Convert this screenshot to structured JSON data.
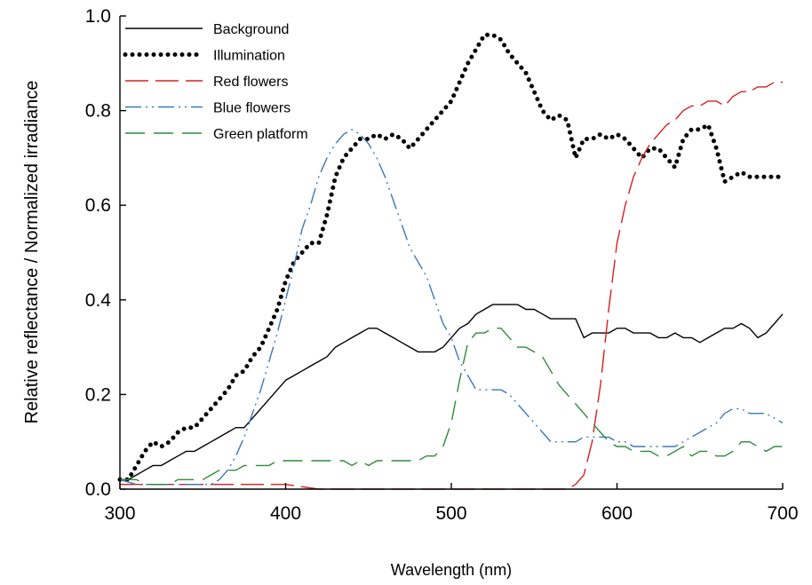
{
  "chart_data": {
    "type": "line",
    "xlabel": "Wavelength (nm)",
    "ylabel": "Relative reflectance / Normalized irradiance",
    "xlim": [
      300,
      700
    ],
    "ylim": [
      0,
      1.0
    ],
    "xticks": [
      "300",
      "400",
      "500",
      "600",
      "700"
    ],
    "yticks": [
      "0.0",
      "0.2",
      "0.4",
      "0.6",
      "0.8",
      "1.0"
    ],
    "grid": false,
    "legend_position": "top-center",
    "series": [
      {
        "name": "Background",
        "color": "#000000",
        "dash": "solid",
        "x": [
          300,
          305,
          310,
          315,
          320,
          325,
          330,
          335,
          340,
          345,
          350,
          355,
          360,
          365,
          370,
          375,
          380,
          385,
          390,
          395,
          400,
          405,
          410,
          415,
          420,
          425,
          430,
          435,
          440,
          445,
          450,
          455,
          460,
          465,
          470,
          475,
          480,
          485,
          490,
          495,
          500,
          505,
          510,
          515,
          520,
          525,
          530,
          535,
          540,
          545,
          550,
          555,
          560,
          565,
          570,
          575,
          580,
          585,
          590,
          595,
          600,
          605,
          610,
          615,
          620,
          625,
          630,
          635,
          640,
          645,
          650,
          655,
          660,
          665,
          670,
          675,
          680,
          685,
          690,
          695,
          700
        ],
        "y": [
          0.02,
          0.02,
          0.03,
          0.04,
          0.05,
          0.05,
          0.06,
          0.07,
          0.08,
          0.08,
          0.09,
          0.1,
          0.11,
          0.12,
          0.13,
          0.13,
          0.15,
          0.17,
          0.19,
          0.21,
          0.23,
          0.24,
          0.25,
          0.26,
          0.27,
          0.28,
          0.3,
          0.31,
          0.32,
          0.33,
          0.34,
          0.34,
          0.33,
          0.32,
          0.31,
          0.3,
          0.29,
          0.29,
          0.29,
          0.3,
          0.32,
          0.34,
          0.35,
          0.37,
          0.38,
          0.39,
          0.39,
          0.39,
          0.39,
          0.38,
          0.38,
          0.37,
          0.36,
          0.36,
          0.36,
          0.36,
          0.32,
          0.33,
          0.33,
          0.33,
          0.34,
          0.34,
          0.33,
          0.33,
          0.33,
          0.32,
          0.32,
          0.33,
          0.32,
          0.32,
          0.31,
          0.32,
          0.33,
          0.34,
          0.34,
          0.35,
          0.34,
          0.32,
          0.33,
          0.35,
          0.37
        ]
      },
      {
        "name": "Illumination",
        "color": "#000000",
        "dash": "dotted",
        "x": [
          300,
          305,
          310,
          315,
          320,
          325,
          330,
          335,
          340,
          345,
          350,
          355,
          360,
          365,
          370,
          375,
          380,
          385,
          390,
          395,
          400,
          405,
          410,
          415,
          420,
          425,
          430,
          435,
          440,
          445,
          450,
          455,
          460,
          465,
          470,
          475,
          480,
          485,
          490,
          495,
          500,
          505,
          510,
          515,
          520,
          525,
          530,
          535,
          540,
          545,
          550,
          555,
          560,
          565,
          570,
          575,
          580,
          585,
          590,
          595,
          600,
          605,
          610,
          615,
          620,
          625,
          630,
          635,
          640,
          645,
          650,
          655,
          660,
          665,
          670,
          675,
          680,
          685,
          690,
          695,
          700
        ],
        "y": [
          0.02,
          0.02,
          0.05,
          0.08,
          0.1,
          0.09,
          0.1,
          0.12,
          0.13,
          0.13,
          0.15,
          0.17,
          0.19,
          0.21,
          0.24,
          0.25,
          0.28,
          0.3,
          0.34,
          0.38,
          0.44,
          0.48,
          0.5,
          0.52,
          0.52,
          0.58,
          0.66,
          0.7,
          0.72,
          0.74,
          0.74,
          0.75,
          0.74,
          0.75,
          0.74,
          0.72,
          0.74,
          0.76,
          0.78,
          0.8,
          0.82,
          0.86,
          0.9,
          0.93,
          0.96,
          0.96,
          0.95,
          0.92,
          0.9,
          0.88,
          0.84,
          0.8,
          0.78,
          0.79,
          0.78,
          0.7,
          0.74,
          0.74,
          0.75,
          0.74,
          0.75,
          0.74,
          0.72,
          0.7,
          0.72,
          0.72,
          0.7,
          0.68,
          0.74,
          0.76,
          0.76,
          0.77,
          0.72,
          0.65,
          0.66,
          0.67,
          0.66,
          0.66,
          0.66,
          0.66,
          0.66
        ]
      },
      {
        "name": "Red flowers",
        "color": "#d62020",
        "dash": "longdash",
        "x": [
          300,
          320,
          340,
          360,
          380,
          400,
          420,
          440,
          460,
          480,
          500,
          520,
          540,
          560,
          570,
          575,
          580,
          585,
          590,
          595,
          600,
          605,
          610,
          615,
          620,
          625,
          630,
          635,
          640,
          645,
          650,
          655,
          660,
          665,
          670,
          675,
          680,
          685,
          690,
          695,
          700
        ],
        "y": [
          0.01,
          0.01,
          0.01,
          0.01,
          0.01,
          0.01,
          0.0,
          0.0,
          0.0,
          0.0,
          0.0,
          0.0,
          0.0,
          0.0,
          0.0,
          0.01,
          0.03,
          0.1,
          0.22,
          0.38,
          0.52,
          0.6,
          0.66,
          0.7,
          0.73,
          0.75,
          0.77,
          0.78,
          0.8,
          0.81,
          0.81,
          0.82,
          0.82,
          0.81,
          0.83,
          0.84,
          0.84,
          0.85,
          0.85,
          0.86,
          0.86
        ]
      },
      {
        "name": "Blue flowers",
        "color": "#3a78c0",
        "dash": "dashdotdot",
        "x": [
          300,
          310,
          320,
          330,
          340,
          350,
          355,
          360,
          365,
          370,
          375,
          380,
          385,
          390,
          395,
          400,
          405,
          410,
          415,
          420,
          425,
          430,
          435,
          440,
          445,
          450,
          455,
          460,
          465,
          470,
          475,
          480,
          485,
          490,
          495,
          500,
          505,
          510,
          515,
          520,
          525,
          530,
          535,
          540,
          545,
          550,
          555,
          560,
          565,
          570,
          575,
          580,
          585,
          590,
          595,
          600,
          605,
          610,
          615,
          620,
          625,
          630,
          635,
          640,
          645,
          650,
          655,
          660,
          665,
          670,
          675,
          680,
          685,
          690,
          695,
          700
        ],
        "y": [
          0.02,
          0.01,
          0.01,
          0.01,
          0.01,
          0.01,
          0.01,
          0.02,
          0.04,
          0.07,
          0.11,
          0.16,
          0.21,
          0.27,
          0.33,
          0.4,
          0.47,
          0.55,
          0.6,
          0.66,
          0.7,
          0.73,
          0.75,
          0.76,
          0.75,
          0.73,
          0.7,
          0.66,
          0.61,
          0.56,
          0.51,
          0.48,
          0.45,
          0.4,
          0.35,
          0.32,
          0.27,
          0.24,
          0.21,
          0.21,
          0.21,
          0.21,
          0.2,
          0.18,
          0.16,
          0.14,
          0.12,
          0.1,
          0.1,
          0.1,
          0.1,
          0.11,
          0.11,
          0.11,
          0.11,
          0.1,
          0.1,
          0.09,
          0.09,
          0.09,
          0.09,
          0.09,
          0.09,
          0.1,
          0.11,
          0.12,
          0.13,
          0.14,
          0.16,
          0.17,
          0.17,
          0.16,
          0.16,
          0.16,
          0.15,
          0.14
        ]
      },
      {
        "name": "Green platform",
        "color": "#2f8a3a",
        "dash": "dash",
        "x": [
          300,
          305,
          310,
          315,
          320,
          325,
          330,
          335,
          340,
          345,
          350,
          355,
          360,
          365,
          370,
          375,
          380,
          385,
          390,
          395,
          400,
          405,
          410,
          415,
          420,
          425,
          430,
          435,
          440,
          445,
          450,
          455,
          460,
          465,
          470,
          475,
          480,
          485,
          490,
          495,
          500,
          505,
          510,
          515,
          520,
          525,
          530,
          535,
          540,
          545,
          550,
          555,
          560,
          565,
          570,
          575,
          580,
          585,
          590,
          595,
          600,
          605,
          610,
          615,
          620,
          625,
          630,
          635,
          640,
          645,
          650,
          655,
          660,
          665,
          670,
          675,
          680,
          685,
          690,
          695,
          700
        ],
        "y": [
          0.02,
          0.02,
          0.02,
          0.01,
          0.01,
          0.01,
          0.01,
          0.02,
          0.02,
          0.02,
          0.02,
          0.03,
          0.04,
          0.04,
          0.04,
          0.05,
          0.05,
          0.05,
          0.05,
          0.06,
          0.06,
          0.06,
          0.06,
          0.06,
          0.06,
          0.06,
          0.06,
          0.06,
          0.05,
          0.06,
          0.05,
          0.06,
          0.06,
          0.06,
          0.06,
          0.06,
          0.06,
          0.07,
          0.07,
          0.09,
          0.14,
          0.23,
          0.31,
          0.33,
          0.33,
          0.34,
          0.34,
          0.32,
          0.3,
          0.3,
          0.29,
          0.28,
          0.25,
          0.22,
          0.2,
          0.18,
          0.16,
          0.14,
          0.12,
          0.1,
          0.09,
          0.09,
          0.08,
          0.08,
          0.08,
          0.07,
          0.07,
          0.08,
          0.09,
          0.07,
          0.08,
          0.08,
          0.07,
          0.07,
          0.08,
          0.1,
          0.1,
          0.09,
          0.08,
          0.09,
          0.09
        ]
      }
    ]
  }
}
